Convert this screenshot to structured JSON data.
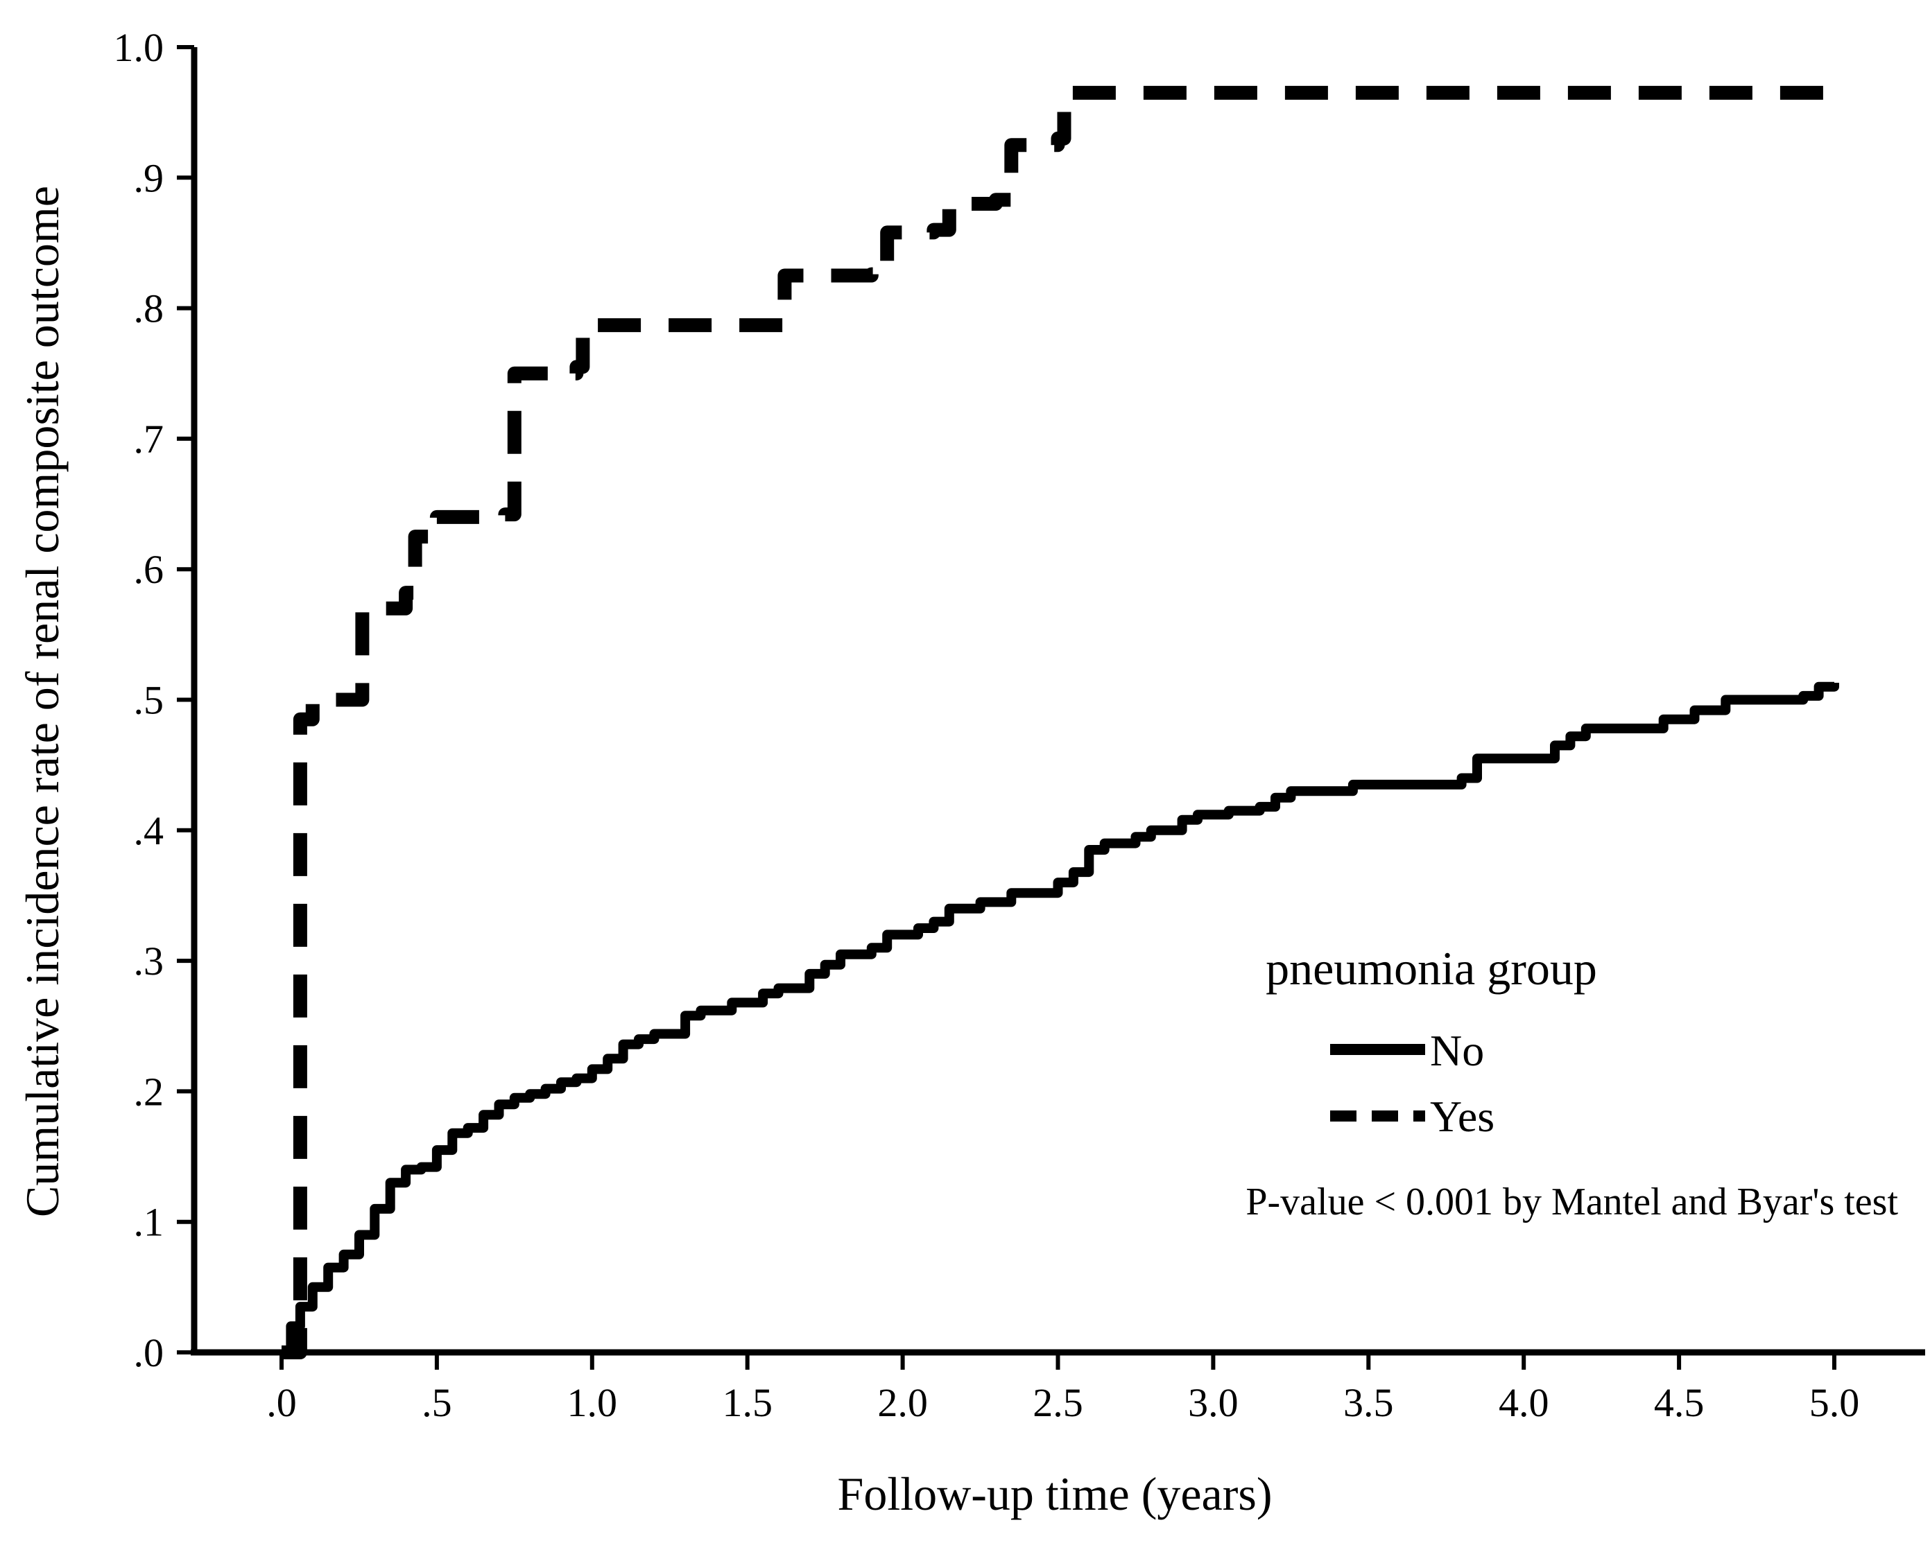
{
  "chart_data": {
    "type": "line",
    "title": "",
    "xlabel": "Follow-up time (years)",
    "ylabel": "Cumulative incidence rate of renal composite outcome",
    "xlim": [
      -0.3,
      5.3
    ],
    "ylim": [
      0,
      1.0
    ],
    "x_ticks": [
      0.0,
      0.5,
      1.0,
      1.5,
      2.0,
      2.5,
      3.0,
      3.5,
      4.0,
      4.5,
      5.0
    ],
    "x_tick_labels": [
      ".0",
      ".5",
      "1.0",
      "1.5",
      "2.0",
      "2.5",
      "3.0",
      "3.5",
      "4.0",
      "4.5",
      "5.0"
    ],
    "y_ticks": [
      0.0,
      0.1,
      0.2,
      0.3,
      0.4,
      0.5,
      0.6,
      0.7,
      0.8,
      0.9,
      1.0
    ],
    "y_tick_labels": [
      ".0",
      ".1",
      ".2",
      ".3",
      ".4",
      ".5",
      ".6",
      ".7",
      ".8",
      ".9",
      "1.0"
    ],
    "grid": false,
    "legend": {
      "title": "pneumonia group",
      "placement": "lower-right"
    },
    "annotation": "P-value < 0.001 by Mantel and Byar's test",
    "series": [
      {
        "name": "No",
        "style": "solid",
        "step": true,
        "points": [
          [
            0.0,
            0.0
          ],
          [
            0.03,
            0.02
          ],
          [
            0.06,
            0.035
          ],
          [
            0.1,
            0.05
          ],
          [
            0.15,
            0.065
          ],
          [
            0.2,
            0.075
          ],
          [
            0.25,
            0.09
          ],
          [
            0.3,
            0.11
          ],
          [
            0.35,
            0.13
          ],
          [
            0.4,
            0.14
          ],
          [
            0.45,
            0.142
          ],
          [
            0.5,
            0.155
          ],
          [
            0.55,
            0.168
          ],
          [
            0.6,
            0.172
          ],
          [
            0.65,
            0.182
          ],
          [
            0.7,
            0.19
          ],
          [
            0.75,
            0.195
          ],
          [
            0.8,
            0.198
          ],
          [
            0.85,
            0.202
          ],
          [
            0.9,
            0.207
          ],
          [
            0.95,
            0.21
          ],
          [
            1.0,
            0.217
          ],
          [
            1.05,
            0.225
          ],
          [
            1.1,
            0.236
          ],
          [
            1.15,
            0.24
          ],
          [
            1.2,
            0.244
          ],
          [
            1.3,
            0.258
          ],
          [
            1.35,
            0.262
          ],
          [
            1.45,
            0.268
          ],
          [
            1.55,
            0.275
          ],
          [
            1.6,
            0.279
          ],
          [
            1.7,
            0.29
          ],
          [
            1.75,
            0.297
          ],
          [
            1.8,
            0.305
          ],
          [
            1.9,
            0.31
          ],
          [
            1.95,
            0.32
          ],
          [
            2.05,
            0.325
          ],
          [
            2.1,
            0.33
          ],
          [
            2.15,
            0.34
          ],
          [
            2.25,
            0.345
          ],
          [
            2.35,
            0.352
          ],
          [
            2.5,
            0.36
          ],
          [
            2.55,
            0.368
          ],
          [
            2.6,
            0.385
          ],
          [
            2.65,
            0.39
          ],
          [
            2.75,
            0.395
          ],
          [
            2.8,
            0.4
          ],
          [
            2.9,
            0.408
          ],
          [
            2.95,
            0.412
          ],
          [
            3.05,
            0.415
          ],
          [
            3.15,
            0.418
          ],
          [
            3.2,
            0.425
          ],
          [
            3.25,
            0.43
          ],
          [
            3.45,
            0.435
          ],
          [
            3.8,
            0.44
          ],
          [
            3.85,
            0.455
          ],
          [
            4.1,
            0.465
          ],
          [
            4.15,
            0.472
          ],
          [
            4.2,
            0.478
          ],
          [
            4.45,
            0.485
          ],
          [
            4.55,
            0.492
          ],
          [
            4.65,
            0.5
          ],
          [
            4.9,
            0.503
          ],
          [
            4.95,
            0.51
          ],
          [
            5.0,
            0.513
          ]
        ]
      },
      {
        "name": "Yes",
        "style": "dashed",
        "step": true,
        "points": [
          [
            0.0,
            0.0
          ],
          [
            0.05,
            0.0
          ],
          [
            0.06,
            0.485
          ],
          [
            0.1,
            0.5
          ],
          [
            0.25,
            0.5
          ],
          [
            0.26,
            0.57
          ],
          [
            0.4,
            0.582
          ],
          [
            0.43,
            0.625
          ],
          [
            0.5,
            0.64
          ],
          [
            0.72,
            0.642
          ],
          [
            0.75,
            0.75
          ],
          [
            0.95,
            0.755
          ],
          [
            0.97,
            0.787
          ],
          [
            1.6,
            0.787
          ],
          [
            1.62,
            0.825
          ],
          [
            1.9,
            0.826
          ],
          [
            1.95,
            0.858
          ],
          [
            2.1,
            0.86
          ],
          [
            2.15,
            0.88
          ],
          [
            2.3,
            0.883
          ],
          [
            2.35,
            0.925
          ],
          [
            2.5,
            0.93
          ],
          [
            2.52,
            0.965
          ],
          [
            5.0,
            0.965
          ]
        ]
      }
    ]
  }
}
